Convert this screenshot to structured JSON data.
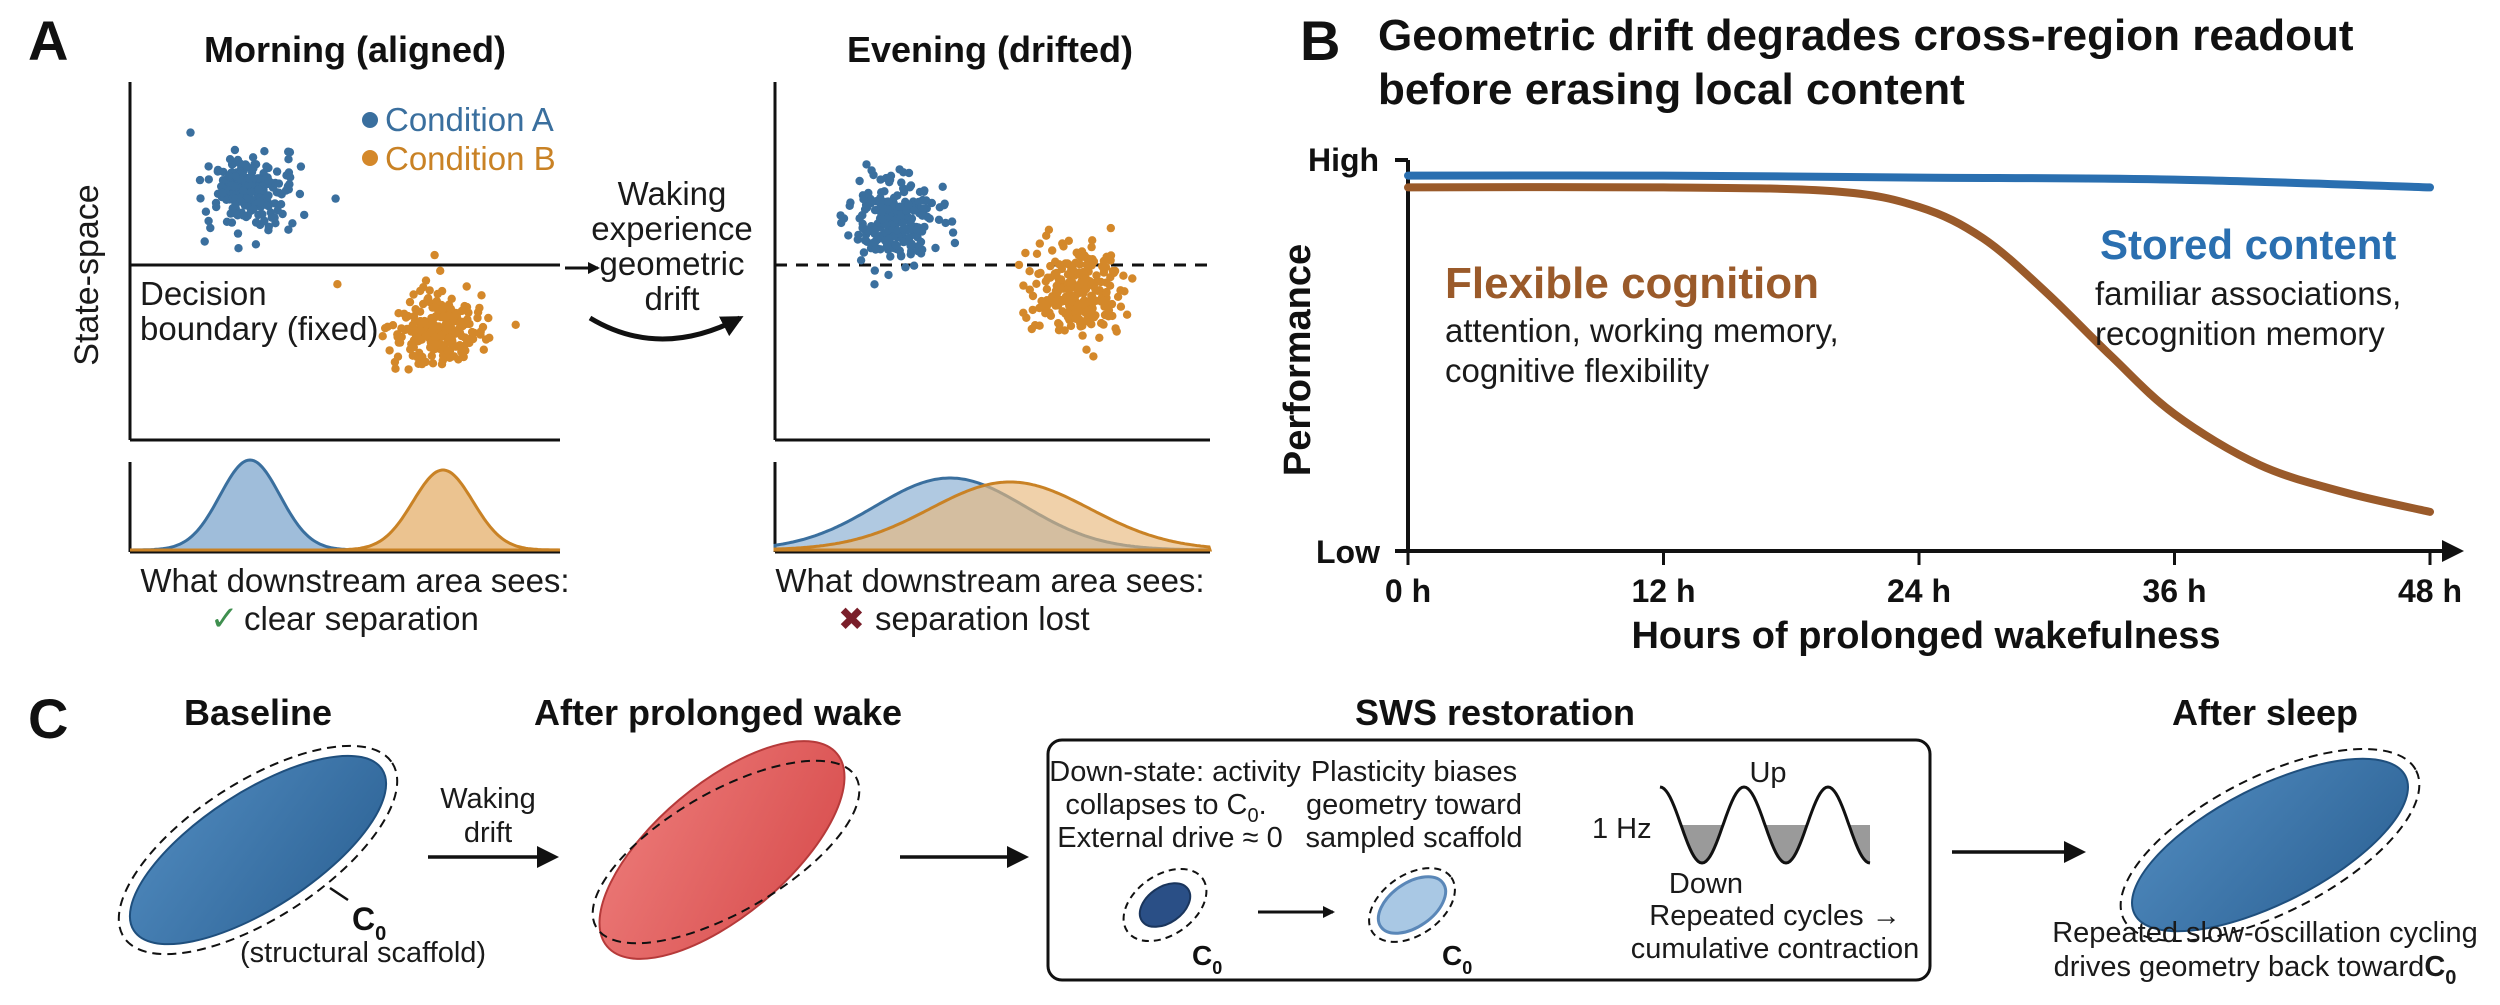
{
  "panelA": {
    "letter": "A",
    "left_title": "Morning (aligned)",
    "right_title": "Evening (drifted)",
    "y_axis_label": "State-space",
    "legend": [
      {
        "label": "Condition A",
        "color": "#3a6f9e"
      },
      {
        "label": "Condition B",
        "color": "#d4882a"
      }
    ],
    "boundary_label_line1": "Decision",
    "boundary_label_line2": "boundary (fixed)",
    "arrow_label": [
      "Waking",
      "experience",
      "geometric",
      "drift"
    ],
    "left_readout_line1": "What downstream area sees:",
    "left_readout_line2": "clear separation",
    "right_readout_line1": "What downstream area sees:",
    "right_readout_line2": "separation lost",
    "check_color": "#3f8f4f",
    "cross_color": "#7a1f2a"
  },
  "panelB": {
    "letter": "B",
    "title_line1": "Geometric drift degrades cross-region readout",
    "title_line2": "before erasing local content",
    "y_label": "Performance",
    "y_high": "High",
    "y_low": "Low",
    "x_label": "Hours of prolonged wakefulness",
    "stored_title": "Stored content",
    "stored_desc_line1": "familiar associations,",
    "stored_desc_line2": "recognition memory",
    "flex_title": "Flexible cognition",
    "flex_desc_line1": "attention, working memory,",
    "flex_desc_line2": "cognitive flexibility",
    "stored_color": "#2a6fb0",
    "flex_color": "#9a5a2a"
  },
  "chart_data": {
    "type": "line",
    "xlabel": "Hours of prolonged wakefulness",
    "ylabel": "Performance",
    "x_ticks": [
      "0 h",
      "12 h",
      "24 h",
      "36 h",
      "48 h"
    ],
    "xlim": [
      0,
      48
    ],
    "y_ticks": [
      "Low",
      "High"
    ],
    "ylim": [
      0,
      1
    ],
    "series": [
      {
        "name": "Stored content",
        "x": [
          0,
          12,
          24,
          36,
          48
        ],
        "y": [
          0.96,
          0.96,
          0.955,
          0.95,
          0.93
        ]
      },
      {
        "name": "Flexible cognition",
        "x": [
          0,
          12,
          20,
          24,
          27,
          30,
          33,
          36,
          40,
          44,
          48
        ],
        "y": [
          0.93,
          0.93,
          0.92,
          0.88,
          0.8,
          0.66,
          0.5,
          0.35,
          0.22,
          0.15,
          0.1
        ]
      }
    ]
  },
  "panelC": {
    "letter": "C",
    "baseline_title": "Baseline",
    "wake_title": "After prolonged wake",
    "sws_title": "SWS restoration",
    "sleep_title": "After sleep",
    "c0_symbol": "C",
    "c0_sub": "0",
    "scaffold_label": "(structural scaffold)",
    "waking_drift": [
      "Waking",
      "drift"
    ],
    "downstate_text": [
      "Down-state: activity",
      "collapses to C",
      "0",
      ".",
      "External drive ≈ 0"
    ],
    "plasticity_text": [
      "Plasticity biases",
      "geometry toward",
      "sampled scaffold"
    ],
    "oscillation_freq": "1 Hz",
    "up_label": "Up",
    "down_label": "Down",
    "cycles_text": [
      "Repeated cycles →",
      "cumulative contraction"
    ],
    "sleep_caption_line1": "Repeated slow-oscillation cycling",
    "sleep_caption_line2": "drives geometry back toward",
    "blue_color": "#3a73a8",
    "red_color": "#e05a5a"
  }
}
